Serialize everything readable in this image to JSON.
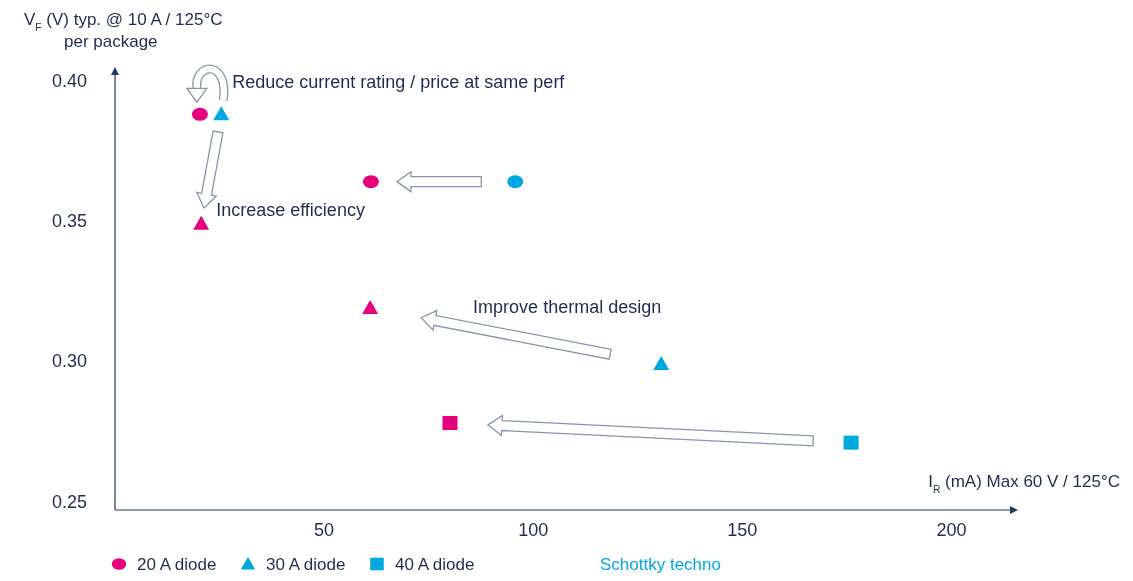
{
  "chart_data": {
    "type": "scatter",
    "xlabel": "I$_{R}$ (mA) Max 60 V / 125°C",
    "ylabel": "V$_{F}$ (V) typ. @ 10 A / 125°C\nper package",
    "xlim": [
      0,
      214
    ],
    "xticks": [
      50,
      100,
      150,
      200
    ],
    "ylim": [
      0.247,
      0.402
    ],
    "yticks": [
      {
        "value": 0.25,
        "label": "0.25"
      },
      {
        "value": 0.3,
        "label": "0.30"
      },
      {
        "value": 0.35,
        "label": "0.35"
      },
      {
        "value": 0.4,
        "label": "0.40"
      }
    ],
    "grid": false,
    "legend": "bottom",
    "series": [
      {
        "name": "20 A diode",
        "marker": "circle",
        "color": "#e6007e",
        "x": [
          20.3,
          61.2,
          95.7
        ],
        "values": [
          0.388,
          0.364,
          0.364
        ],
        "colors": [
          "#e6007e",
          "#e6007e",
          "#00a8e0"
        ]
      },
      {
        "name": "30 A diode",
        "marker": "triangle",
        "color": "#00a8e0",
        "x": [
          25.4,
          20.6,
          61,
          130.6
        ],
        "values": [
          0.388,
          0.349,
          0.319,
          0.299
        ],
        "colors": [
          "#00a8e0",
          "#e6007e",
          "#e6007e",
          "#00a8e0"
        ]
      },
      {
        "name": "40 A diode",
        "marker": "square",
        "color": "#00a8e0",
        "x": [
          80.1,
          176
        ],
        "values": [
          0.278,
          0.271
        ],
        "colors": [
          "#e6007e",
          "#00a8e0"
        ]
      }
    ],
    "annotations": [
      "Reduce current rating / price at same perf",
      "Increase efficiency",
      "Improve thermal design",
      "Schottky techno"
    ]
  }
}
